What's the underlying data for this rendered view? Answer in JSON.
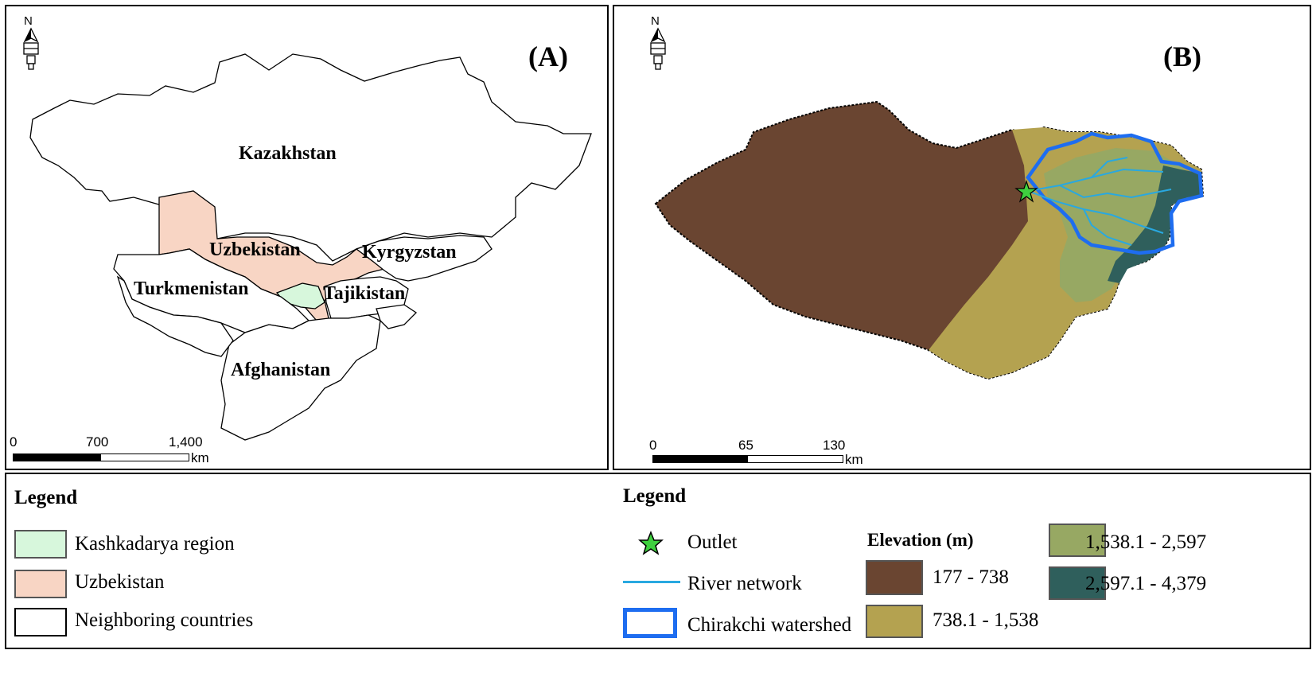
{
  "panel_a": {
    "label": "(A)",
    "countries": {
      "kazakhstan": "Kazakhstan",
      "uzbekistan": "Uzbekistan",
      "kyrgyzstan": "Kyrgyzstan",
      "turkmenistan": "Turkmenistan",
      "tajikistan": "Tajikistan",
      "afghanistan": "Afghanistan"
    },
    "scale": {
      "ticks": [
        "0",
        "700",
        "1,400"
      ],
      "unit": "km"
    },
    "north": "N"
  },
  "panel_b": {
    "label": "(B)",
    "scale": {
      "ticks": [
        "0",
        "65",
        "130"
      ],
      "unit": "km"
    },
    "north": "N"
  },
  "legend_a": {
    "title": "Legend",
    "items": [
      {
        "label": "Kashkadarya region",
        "color": "#d7f7dc"
      },
      {
        "label": "Uzbekistan",
        "color": "#f8d5c4"
      },
      {
        "label": "Neighboring countries",
        "color": "#ffffff"
      }
    ]
  },
  "legend_b": {
    "title": "Legend",
    "outlet": "Outlet",
    "river": "River network",
    "watershed": "Chirakchi watershed",
    "elevation_title": "Elevation (m)",
    "elevation_classes": [
      {
        "label": "177 - 738",
        "color": "#6a4531"
      },
      {
        "label": "738.1 - 1,538",
        "color": "#b4a250"
      },
      {
        "label": "1,538.1 - 2,597",
        "color": "#97a863"
      },
      {
        "label": "2,597.1 - 4,379",
        "color": "#2f5f5c"
      }
    ],
    "colors": {
      "outlet": "#3fd13f",
      "river": "#29a8e0",
      "watershed": "#1e6df0"
    }
  }
}
